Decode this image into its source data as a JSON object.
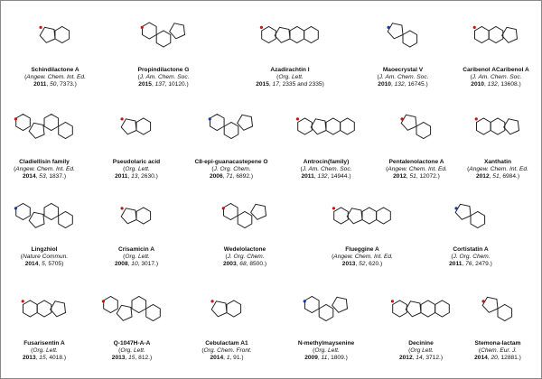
{
  "compounds": [
    {
      "name": "Schindilactone A",
      "journal": "Angew. Chem. Int. Ed.",
      "year": "2011",
      "volume": "50",
      "pages": "7373."
    },
    {
      "name": "Propindilactone G",
      "journal": "J. Am. Chem. Soc.",
      "year": "2015",
      "volume": "137",
      "pages": "10120."
    },
    {
      "name": "Azadirachtin I",
      "journal": "Org. Lett.",
      "year": "2015",
      "volume": "17",
      "pages": "2335 and 2335"
    },
    {
      "name": "Maoecrystal V",
      "journal": "J. Am. Chem. Soc.",
      "year": "2010",
      "volume": "132",
      "pages": "16745."
    },
    {
      "name": "Caribenol ACaribenol A",
      "journal": "J. Am. Chem. Soc.",
      "year": "2010",
      "volume": "132",
      "pages": "13608."
    },
    {
      "name": "Cladiellisin family",
      "journal": "Angew. Chem. Int. Ed.",
      "year": "2014",
      "volume": "53",
      "pages": "1837."
    },
    {
      "name": "Pseudolaric acid",
      "journal": "Org. Lett.",
      "year": "2011",
      "volume": "13",
      "pages": "2630."
    },
    {
      "name": "C8-epi-guanacastepene O",
      "journal": "J. Org. Chem.",
      "year": "2006",
      "volume": "71",
      "pages": "6892."
    },
    {
      "name": "Antrocin(family)",
      "journal": "J. Am. Chem. Soc.",
      "year": "2011",
      "volume": "132",
      "pages": "14944."
    },
    {
      "name": "Pentalenolactone A",
      "journal": "Angew. Chem. Int. Ed.",
      "year": "2012",
      "volume": "51",
      "pages": "12072."
    },
    {
      "name": "Xanthatin",
      "journal": "Angew. Chem. Int. Ed.",
      "year": "2012",
      "volume": "51",
      "pages": "6984."
    },
    {
      "name": "Lingzhiol",
      "journal": "Nature Commun.",
      "year": "2014",
      "volume": "5",
      "pages": "5705"
    },
    {
      "name": "Crisamicin A",
      "journal": "Org. Lett.",
      "year": "2008",
      "volume": "10",
      "pages": "3017."
    },
    {
      "name": "Wedelolactone",
      "journal": "J. Org. Chem.",
      "year": "2003",
      "volume": "68",
      "pages": "8500."
    },
    {
      "name": "Flueggine A",
      "journal": "Angew. Chem. Int. Ed.",
      "year": "2013",
      "volume": "52",
      "pages": "620."
    },
    {
      "name": "Cortistatin A",
      "journal": "J. Org. Chem.",
      "year": "2011",
      "volume": "76",
      "pages": "2479."
    },
    {
      "name": "Fusarisentin A",
      "journal": "Org. Lett.",
      "year": "2013",
      "volume": "15",
      "pages": "4018."
    },
    {
      "name": "Q-1047H-A-A",
      "journal": "Org. Lett.",
      "year": "2013",
      "volume": "15",
      "pages": "812."
    },
    {
      "name": "Cebulactam A1",
      "journal": "Org. Chem. Front.",
      "year": "2014",
      "volume": "1",
      "pages": "91."
    },
    {
      "name": "N-methylmaysenine",
      "journal": "Org. Lett.",
      "year": "2009",
      "volume": "11",
      "pages": "1809."
    },
    {
      "name": "Decinine",
      "journal": "Org Lett.",
      "year": "2012",
      "volume": "14",
      "pages": "3712."
    },
    {
      "name": "Stemona-lactam",
      "journal": "Chem. Eur. J.",
      "year": "2014",
      "volume": "20",
      "pages": "12881."
    }
  ],
  "colors": {
    "bond": "#222222",
    "oxygen": "#cc1111",
    "nitrogen": "#1a3a9a"
  }
}
